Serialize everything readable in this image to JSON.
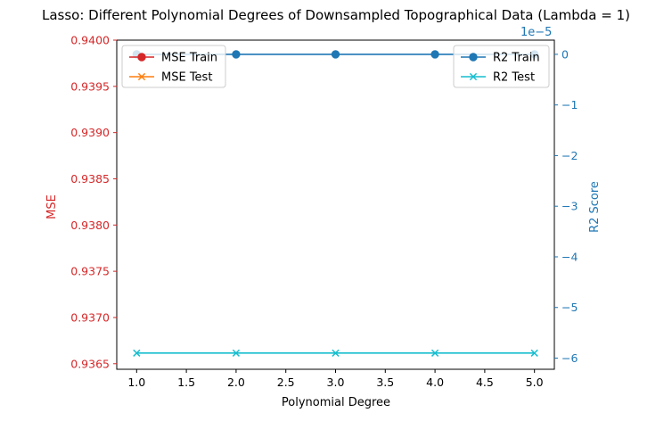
{
  "chart_data": {
    "type": "line",
    "title": "Lasso: Different Polynomial Degrees of Downsampled Topographical Data (Lambda = 1)",
    "xlabel": "Polynomial Degree",
    "x": [
      1,
      2,
      3,
      4,
      5
    ],
    "xlim": [
      0.8,
      5.2
    ],
    "xticks": [
      1.0,
      1.5,
      2.0,
      2.5,
      3.0,
      3.5,
      4.0,
      4.5,
      5.0
    ],
    "xtick_labels": [
      "1.0",
      "1.5",
      "2.0",
      "2.5",
      "3.0",
      "3.5",
      "4.0",
      "4.5",
      "5.0"
    ],
    "left_axis": {
      "label": "MSE",
      "color": "#d62728",
      "ylim": [
        0.93644,
        0.94
      ],
      "ticks": [
        0.9365,
        0.937,
        0.9375,
        0.938,
        0.9385,
        0.939,
        0.9395,
        0.94
      ],
      "tick_labels": [
        "0.9365",
        "0.9370",
        "0.9375",
        "0.9380",
        "0.9385",
        "0.9390",
        "0.9395",
        "0.9400"
      ]
    },
    "right_axis": {
      "label": "R2 Score",
      "color": "#1f77b4",
      "offset_label": "1e−5",
      "scale": 1e-05,
      "ylim": [
        -6.22,
        0.28
      ],
      "ticks": [
        0,
        -1,
        -2,
        -3,
        -4,
        -5,
        -6
      ],
      "tick_labels": [
        "0",
        "−1",
        "−2",
        "−3",
        "−4",
        "−5",
        "−6"
      ]
    },
    "series": [
      {
        "name": "MSE Train",
        "axis": "left",
        "color": "#d62728",
        "marker": "o",
        "values": [
          null,
          null,
          null,
          null,
          null
        ]
      },
      {
        "name": "MSE Test",
        "axis": "left",
        "color": "#ff7f0e",
        "marker": "x",
        "values": [
          null,
          null,
          null,
          null,
          null
        ]
      },
      {
        "name": "R2 Train",
        "axis": "right",
        "color": "#1f77b4",
        "marker": "o",
        "values": [
          0,
          0,
          0,
          0,
          0
        ]
      },
      {
        "name": "R2 Test",
        "axis": "right",
        "color": "#17becf",
        "marker": "x",
        "values": [
          -5.9,
          -5.9,
          -5.9,
          -5.9,
          -5.9
        ]
      }
    ],
    "legends": [
      {
        "placement": "upper-left",
        "entries": [
          "MSE Train",
          "MSE Test"
        ]
      },
      {
        "placement": "upper-right",
        "entries": [
          "R2 Train",
          "R2 Test"
        ]
      }
    ],
    "grid": false
  }
}
